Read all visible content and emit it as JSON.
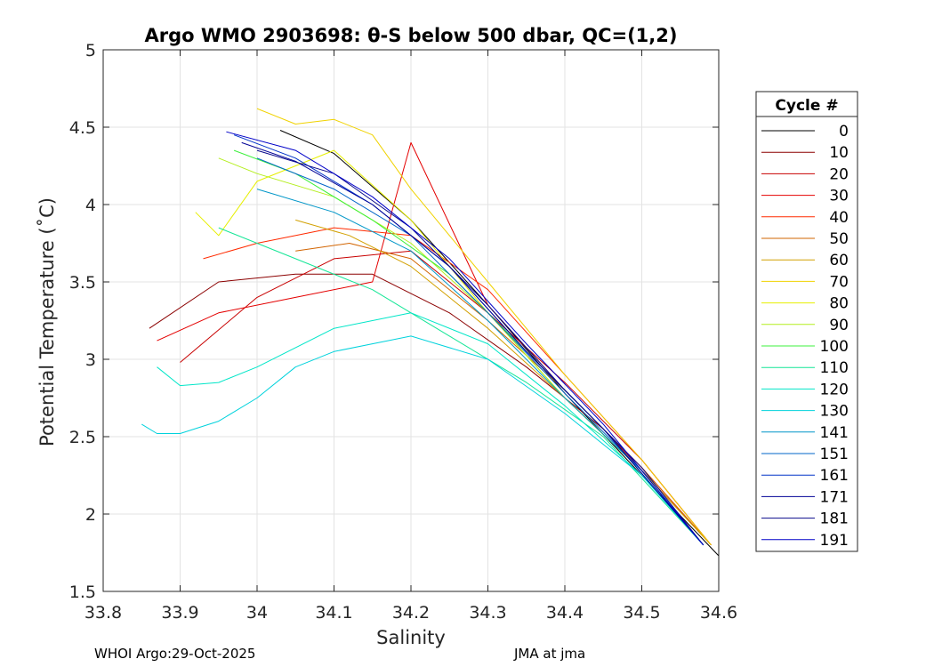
{
  "chart_data": {
    "type": "line",
    "title": "Argo WMO 2903698: θ-S below 500 dbar,  QC=(1,2)",
    "xlabel": "Salinity",
    "ylabel": "Potential Temperature (˚C)",
    "xlim": [
      33.8,
      34.6
    ],
    "ylim": [
      1.5,
      5
    ],
    "xticks": [
      "33.8",
      "33.9",
      "34",
      "34.1",
      "34.2",
      "34.3",
      "34.4",
      "34.5",
      "34.6"
    ],
    "yticks": [
      "1.5",
      "2",
      "2.5",
      "3",
      "3.5",
      "4",
      "4.5",
      "5"
    ],
    "grid": true,
    "legend": {
      "title": "Cycle #",
      "placement": "outside-right",
      "entries": [
        {
          "label": "0",
          "color": "#000000"
        },
        {
          "label": "10",
          "color": "#8b0000"
        },
        {
          "label": "20",
          "color": "#c80000"
        },
        {
          "label": "30",
          "color": "#e40000"
        },
        {
          "label": "40",
          "color": "#ff2a00"
        },
        {
          "label": "50",
          "color": "#d26400"
        },
        {
          "label": "60",
          "color": "#d2a000"
        },
        {
          "label": "70",
          "color": "#f0d200"
        },
        {
          "label": "80",
          "color": "#e6ef00"
        },
        {
          "label": "90",
          "color": "#b4ee1e"
        },
        {
          "label": "100",
          "color": "#3cf03c"
        },
        {
          "label": "110",
          "color": "#14e696"
        },
        {
          "label": "120",
          "color": "#00e6c8"
        },
        {
          "label": "130",
          "color": "#00d2dc"
        },
        {
          "label": "141",
          "color": "#0096c8"
        },
        {
          "label": "151",
          "color": "#0064c8"
        },
        {
          "label": "161",
          "color": "#0032c8"
        },
        {
          "label": "171",
          "color": "#000096"
        },
        {
          "label": "181",
          "color": "#0a0a8c"
        },
        {
          "label": "191",
          "color": "#0000c8"
        }
      ]
    },
    "series": [
      {
        "name": "0",
        "x": [
          34.03,
          34.1,
          34.2,
          34.3,
          34.4,
          34.5,
          34.6
        ],
        "y": [
          4.48,
          4.33,
          3.9,
          3.35,
          2.78,
          2.25,
          1.73
        ]
      },
      {
        "name": "10",
        "x": [
          33.86,
          33.95,
          34.05,
          34.15,
          34.25,
          34.35,
          34.45,
          34.59
        ],
        "y": [
          3.2,
          3.5,
          3.55,
          3.55,
          3.3,
          2.95,
          2.55,
          1.8
        ]
      },
      {
        "name": "20",
        "x": [
          33.9,
          34.0,
          34.1,
          34.2,
          34.3,
          34.4,
          34.5,
          34.59
        ],
        "y": [
          2.98,
          3.4,
          3.65,
          3.7,
          3.3,
          2.85,
          2.35,
          1.8
        ]
      },
      {
        "name": "30",
        "x": [
          33.87,
          33.95,
          34.05,
          34.15,
          34.2,
          34.3,
          34.4,
          34.5,
          34.59
        ],
        "y": [
          3.12,
          3.3,
          3.4,
          3.5,
          4.4,
          3.35,
          2.8,
          2.3,
          1.8
        ]
      },
      {
        "name": "40",
        "x": [
          33.93,
          34.0,
          34.1,
          34.2,
          34.3,
          34.4,
          34.5,
          34.59
        ],
        "y": [
          3.65,
          3.75,
          3.85,
          3.8,
          3.45,
          2.9,
          2.35,
          1.8
        ]
      },
      {
        "name": "50",
        "x": [
          34.05,
          34.12,
          34.2,
          34.3,
          34.4,
          34.5,
          34.59
        ],
        "y": [
          3.7,
          3.75,
          3.65,
          3.25,
          2.8,
          2.3,
          1.8
        ]
      },
      {
        "name": "60",
        "x": [
          34.05,
          34.12,
          34.2,
          34.3,
          34.4,
          34.5,
          34.59
        ],
        "y": [
          3.9,
          3.8,
          3.6,
          3.2,
          2.75,
          2.28,
          1.8
        ]
      },
      {
        "name": "70",
        "x": [
          34.0,
          34.05,
          34.1,
          34.15,
          34.2,
          34.3,
          34.4,
          34.5,
          34.59
        ],
        "y": [
          4.62,
          4.52,
          4.55,
          4.45,
          4.1,
          3.5,
          2.9,
          2.35,
          1.8
        ]
      },
      {
        "name": "80",
        "x": [
          33.92,
          33.95,
          34.0,
          34.1,
          34.2,
          34.3,
          34.4,
          34.5,
          34.58
        ],
        "y": [
          3.95,
          3.8,
          4.15,
          4.35,
          3.9,
          3.3,
          2.75,
          2.28,
          1.8
        ]
      },
      {
        "name": "90",
        "x": [
          33.95,
          34.0,
          34.1,
          34.2,
          34.3,
          34.4,
          34.5,
          34.58
        ],
        "y": [
          4.3,
          4.2,
          4.05,
          3.75,
          3.3,
          2.75,
          2.28,
          1.8
        ]
      },
      {
        "name": "100",
        "x": [
          33.97,
          34.05,
          34.15,
          34.25,
          34.35,
          34.45,
          34.58
        ],
        "y": [
          4.35,
          4.2,
          3.9,
          3.55,
          3.05,
          2.55,
          1.8
        ]
      },
      {
        "name": "110",
        "x": [
          33.95,
          34.05,
          34.15,
          34.25,
          34.35,
          34.45,
          34.58
        ],
        "y": [
          3.85,
          3.65,
          3.45,
          3.15,
          2.85,
          2.5,
          1.8
        ]
      },
      {
        "name": "120",
        "x": [
          33.87,
          33.9,
          33.95,
          34.0,
          34.1,
          34.2,
          34.3,
          34.4,
          34.5,
          34.58
        ],
        "y": [
          2.95,
          2.83,
          2.85,
          2.95,
          3.2,
          3.3,
          3.1,
          2.7,
          2.25,
          1.8
        ]
      },
      {
        "name": "130",
        "x": [
          33.85,
          33.87,
          33.9,
          33.95,
          34.0,
          34.05,
          34.1,
          34.2,
          34.3,
          34.4,
          34.5,
          34.58
        ],
        "y": [
          2.58,
          2.52,
          2.52,
          2.6,
          2.75,
          2.95,
          3.05,
          3.15,
          3.0,
          2.65,
          2.25,
          1.8
        ]
      },
      {
        "name": "141",
        "x": [
          34.0,
          34.1,
          34.2,
          34.3,
          34.4,
          34.5,
          34.58
        ],
        "y": [
          4.1,
          3.95,
          3.7,
          3.25,
          2.75,
          2.28,
          1.8
        ]
      },
      {
        "name": "151",
        "x": [
          34.0,
          34.1,
          34.2,
          34.3,
          34.4,
          34.5,
          34.58
        ],
        "y": [
          4.3,
          4.1,
          3.8,
          3.3,
          2.78,
          2.28,
          1.8
        ]
      },
      {
        "name": "161",
        "x": [
          33.97,
          34.05,
          34.15,
          34.25,
          34.35,
          34.45,
          34.58
        ],
        "y": [
          4.45,
          4.3,
          4.0,
          3.6,
          3.05,
          2.55,
          1.8
        ]
      },
      {
        "name": "171",
        "x": [
          33.98,
          34.05,
          34.15,
          34.25,
          34.35,
          34.45,
          34.58
        ],
        "y": [
          4.4,
          4.28,
          4.0,
          3.6,
          3.05,
          2.55,
          1.8
        ]
      },
      {
        "name": "181",
        "x": [
          34.0,
          34.1,
          34.2,
          34.3,
          34.4,
          34.5,
          34.58
        ],
        "y": [
          4.35,
          4.2,
          3.85,
          3.35,
          2.8,
          2.3,
          1.8
        ]
      },
      {
        "name": "191",
        "x": [
          33.96,
          34.05,
          34.15,
          34.25,
          34.35,
          34.45,
          34.58
        ],
        "y": [
          4.47,
          4.35,
          4.05,
          3.65,
          3.1,
          2.58,
          1.8
        ]
      }
    ]
  },
  "footer": {
    "left": "WHOI Argo:29-Oct-2025",
    "right": "JMA at jma"
  }
}
